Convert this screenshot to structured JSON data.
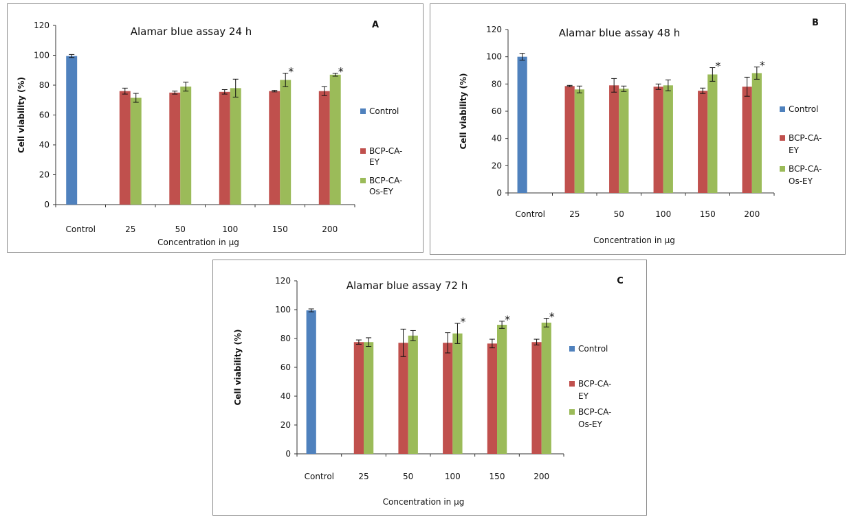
{
  "chart_data": [
    {
      "type": "bar",
      "panel_label": "A",
      "title": "Alamar blue assay  24 h",
      "xlabel": "Concentration in µg",
      "ylabel": "Cell viability (%)",
      "ylim": [
        0,
        120
      ],
      "yticks": [
        0,
        20,
        40,
        60,
        80,
        100,
        120
      ],
      "grid": false,
      "legend_position": "right",
      "categories": [
        "Control",
        "25",
        "50",
        "100",
        "150",
        "200"
      ],
      "series": [
        {
          "name": "Control",
          "color": "#4f81bd",
          "values": [
            99.5,
            null,
            null,
            null,
            null,
            null
          ],
          "errors": [
            1,
            null,
            null,
            null,
            null,
            null
          ]
        },
        {
          "name": "BCP-CA-EY",
          "color": "#c0504d",
          "values": [
            null,
            76,
            75,
            75.5,
            76,
            76
          ],
          "errors": [
            null,
            2,
            1,
            1.5,
            0.5,
            3
          ]
        },
        {
          "name": "BCP-CA-Os-EY",
          "color": "#9bbb59",
          "values": [
            null,
            71.5,
            79,
            78,
            83.5,
            87
          ],
          "errors": [
            null,
            3,
            3,
            6,
            4.5,
            1
          ]
        }
      ],
      "significance": [
        null,
        "",
        "",
        "",
        "*",
        "*"
      ]
    },
    {
      "type": "bar",
      "panel_label": "B",
      "title": "Alamar blue assay  48 h",
      "xlabel": "Concentration in µg",
      "ylabel": "Cell viability (%)",
      "ylim": [
        0,
        120
      ],
      "yticks": [
        0,
        20,
        40,
        60,
        80,
        100,
        120
      ],
      "grid": false,
      "legend_position": "right",
      "categories": [
        "Control",
        "25",
        "50",
        "100",
        "150",
        "200"
      ],
      "series": [
        {
          "name": "Control",
          "color": "#4f81bd",
          "values": [
            100,
            null,
            null,
            null,
            null,
            null
          ],
          "errors": [
            2.5,
            null,
            null,
            null,
            null,
            null
          ]
        },
        {
          "name": "BCP-CA-EY",
          "color": "#c0504d",
          "values": [
            null,
            78.5,
            79,
            78,
            75,
            78
          ],
          "errors": [
            null,
            0.5,
            5,
            2,
            2,
            7
          ]
        },
        {
          "name": "BCP-CA-Os-EY",
          "color": "#9bbb59",
          "values": [
            null,
            76,
            76.5,
            79,
            87,
            88
          ],
          "errors": [
            null,
            2.5,
            2,
            4,
            5,
            4.5
          ]
        }
      ],
      "significance": [
        null,
        "",
        "",
        "",
        "*",
        "*"
      ]
    },
    {
      "type": "bar",
      "panel_label": "C",
      "title": "Alamar blue assay  72 h",
      "xlabel": "Concentration in µg",
      "ylabel": "Cell viability (%)",
      "ylim": [
        0,
        120
      ],
      "yticks": [
        0,
        20,
        40,
        60,
        80,
        100,
        120
      ],
      "grid": false,
      "legend_position": "right",
      "categories": [
        "Control",
        "25",
        "50",
        "100",
        "150",
        "200"
      ],
      "series": [
        {
          "name": "Control",
          "color": "#4f81bd",
          "values": [
            99.5,
            null,
            null,
            null,
            null,
            null
          ],
          "errors": [
            1,
            null,
            null,
            null,
            null,
            null
          ]
        },
        {
          "name": "BCP-CA-EY",
          "color": "#c0504d",
          "values": [
            null,
            77.5,
            77,
            77,
            76.5,
            77.5
          ],
          "errors": [
            null,
            1.5,
            9.5,
            7,
            3,
            2
          ]
        },
        {
          "name": "BCP-CA-Os-EY",
          "color": "#9bbb59",
          "values": [
            null,
            77.5,
            82,
            83.5,
            89.5,
            91
          ],
          "errors": [
            null,
            3,
            3.5,
            7,
            2.5,
            3
          ]
        }
      ],
      "significance": [
        null,
        "",
        "",
        "*",
        "*",
        "*"
      ]
    }
  ]
}
